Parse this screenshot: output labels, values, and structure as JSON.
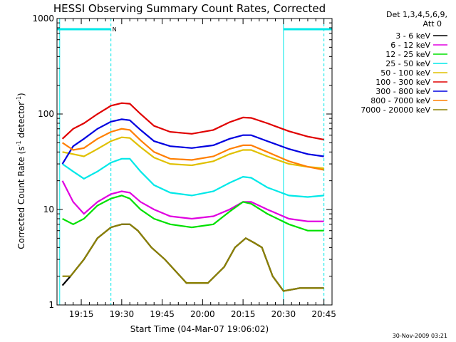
{
  "chart_data": {
    "type": "line",
    "title": "HESSI Observing Summary Count Rates, Corrected",
    "ylabel_main": "Corrected Count Rate (s",
    "ylabel_sup1": "-1",
    "ylabel_mid": " detector",
    "ylabel_sup2": "-1",
    "ylabel_end": ")",
    "xlabel": "Start Time (04-Mar-07 19:06:02)",
    "timestamp": "30-Nov-2009 03:21",
    "y_scale": "log",
    "ylim": [
      1,
      1000
    ],
    "xlim_minutes": [
      0,
      102
    ],
    "y_ticks": [
      {
        "value": 1,
        "label": "1"
      },
      {
        "value": 10,
        "label": "10"
      },
      {
        "value": 100,
        "label": "100"
      },
      {
        "value": 1000,
        "label": "1000"
      }
    ],
    "x_ticks": [
      {
        "minute": 9,
        "label": "19:15"
      },
      {
        "minute": 24,
        "label": "19:30"
      },
      {
        "minute": 39,
        "label": "19:45"
      },
      {
        "minute": 54,
        "label": "20:00"
      },
      {
        "minute": 69,
        "label": "20:15"
      },
      {
        "minute": 84,
        "label": "20:30"
      },
      {
        "minute": 99,
        "label": "20:45"
      }
    ],
    "legend_header": [
      "Det 1,3,4,5,6,9,",
      "Att 0"
    ],
    "legend_position": "right",
    "series": [
      {
        "name": "3 - 6 keV",
        "color": "#000000",
        "points": [
          [
            2,
            1.6
          ],
          [
            5,
            2
          ],
          [
            10,
            3
          ],
          [
            15,
            5
          ],
          [
            20,
            6.5
          ],
          [
            24,
            7
          ],
          [
            27,
            7
          ],
          [
            30,
            6
          ],
          [
            35,
            4
          ],
          [
            40,
            3
          ],
          [
            48,
            1.7
          ],
          [
            56,
            1.7
          ],
          [
            62,
            2.5
          ],
          [
            66,
            4
          ],
          [
            70,
            5
          ],
          [
            73,
            4.5
          ],
          [
            76,
            4
          ],
          [
            80,
            2
          ],
          [
            84,
            1.4
          ],
          [
            90,
            1.5
          ],
          [
            99,
            1.5
          ]
        ]
      },
      {
        "name": "6 - 12 keV",
        "color": "#e000e0",
        "points": [
          [
            2,
            20
          ],
          [
            6,
            12
          ],
          [
            10,
            9
          ],
          [
            15,
            12
          ],
          [
            20,
            14.5
          ],
          [
            24,
            15.5
          ],
          [
            27,
            15
          ],
          [
            31,
            12
          ],
          [
            36,
            10
          ],
          [
            42,
            8.5
          ],
          [
            50,
            8
          ],
          [
            58,
            8.5
          ],
          [
            64,
            10
          ],
          [
            69,
            12
          ],
          [
            72,
            12
          ],
          [
            78,
            10
          ],
          [
            86,
            8
          ],
          [
            93,
            7.5
          ],
          [
            99,
            7.5
          ]
        ]
      },
      {
        "name": "12 - 25 keV",
        "color": "#00e000",
        "points": [
          [
            2,
            8
          ],
          [
            6,
            7
          ],
          [
            10,
            8
          ],
          [
            15,
            11
          ],
          [
            20,
            13
          ],
          [
            24,
            14
          ],
          [
            27,
            13
          ],
          [
            31,
            10
          ],
          [
            36,
            8
          ],
          [
            42,
            7
          ],
          [
            50,
            6.5
          ],
          [
            58,
            7
          ],
          [
            64,
            9.5
          ],
          [
            69,
            12
          ],
          [
            72,
            11.5
          ],
          [
            78,
            9
          ],
          [
            86,
            7
          ],
          [
            93,
            6
          ],
          [
            99,
            6
          ]
        ]
      },
      {
        "name": "25 - 50 keV",
        "color": "#00e8e8",
        "points": [
          [
            2,
            30
          ],
          [
            6,
            25
          ],
          [
            10,
            21
          ],
          [
            15,
            25
          ],
          [
            20,
            31
          ],
          [
            24,
            34
          ],
          [
            27,
            34
          ],
          [
            31,
            25
          ],
          [
            36,
            18
          ],
          [
            42,
            15
          ],
          [
            50,
            14
          ],
          [
            58,
            15.5
          ],
          [
            64,
            19
          ],
          [
            69,
            22
          ],
          [
            72,
            21.5
          ],
          [
            78,
            17
          ],
          [
            86,
            14
          ],
          [
            93,
            13.5
          ],
          [
            99,
            14
          ]
        ]
      },
      {
        "name": "50 - 100 keV",
        "color": "#e0c000",
        "points": [
          [
            2,
            40
          ],
          [
            6,
            38
          ],
          [
            10,
            36
          ],
          [
            15,
            43
          ],
          [
            20,
            52
          ],
          [
            24,
            57
          ],
          [
            27,
            56
          ],
          [
            31,
            45
          ],
          [
            36,
            35
          ],
          [
            42,
            30
          ],
          [
            50,
            29
          ],
          [
            58,
            32
          ],
          [
            64,
            38
          ],
          [
            69,
            42
          ],
          [
            72,
            42
          ],
          [
            78,
            36
          ],
          [
            86,
            30
          ],
          [
            93,
            28
          ],
          [
            99,
            27
          ]
        ]
      },
      {
        "name": "100 - 300 keV",
        "color": "#e00000",
        "points": [
          [
            2,
            55
          ],
          [
            6,
            70
          ],
          [
            10,
            80
          ],
          [
            15,
            100
          ],
          [
            20,
            122
          ],
          [
            24,
            130
          ],
          [
            27,
            128
          ],
          [
            31,
            100
          ],
          [
            36,
            75
          ],
          [
            42,
            65
          ],
          [
            50,
            62
          ],
          [
            58,
            68
          ],
          [
            64,
            82
          ],
          [
            69,
            92
          ],
          [
            72,
            91
          ],
          [
            78,
            80
          ],
          [
            86,
            66
          ],
          [
            93,
            58
          ],
          [
            99,
            54
          ]
        ]
      },
      {
        "name": "300 - 800 keV",
        "color": "#0000e0",
        "points": [
          [
            2,
            30
          ],
          [
            6,
            46
          ],
          [
            10,
            55
          ],
          [
            15,
            70
          ],
          [
            20,
            83
          ],
          [
            24,
            88
          ],
          [
            27,
            86
          ],
          [
            31,
            68
          ],
          [
            36,
            52
          ],
          [
            42,
            46
          ],
          [
            50,
            44
          ],
          [
            58,
            47
          ],
          [
            64,
            55
          ],
          [
            69,
            60
          ],
          [
            72,
            60
          ],
          [
            78,
            52
          ],
          [
            86,
            43
          ],
          [
            93,
            38
          ],
          [
            99,
            36
          ]
        ]
      },
      {
        "name": "800 - 7000 keV",
        "color": "#ff7f00",
        "points": [
          [
            2,
            50
          ],
          [
            6,
            42
          ],
          [
            10,
            44
          ],
          [
            15,
            55
          ],
          [
            20,
            65
          ],
          [
            24,
            70
          ],
          [
            27,
            68
          ],
          [
            31,
            53
          ],
          [
            36,
            40
          ],
          [
            42,
            34
          ],
          [
            50,
            33
          ],
          [
            58,
            36
          ],
          [
            64,
            43
          ],
          [
            69,
            47
          ],
          [
            72,
            47
          ],
          [
            78,
            40
          ],
          [
            86,
            32
          ],
          [
            93,
            28
          ],
          [
            99,
            26
          ]
        ]
      },
      {
        "name": "7000 - 20000 keV",
        "color": "#8b8000",
        "points": [
          [
            2,
            2
          ],
          [
            5,
            2
          ],
          [
            10,
            3
          ],
          [
            15,
            5
          ],
          [
            20,
            6.5
          ],
          [
            24,
            7
          ],
          [
            27,
            7
          ],
          [
            30,
            6
          ],
          [
            35,
            4
          ],
          [
            40,
            3
          ],
          [
            48,
            1.7
          ],
          [
            56,
            1.7
          ],
          [
            62,
            2.5
          ],
          [
            66,
            4
          ],
          [
            70,
            5
          ],
          [
            73,
            4.5
          ],
          [
            76,
            4
          ],
          [
            80,
            2
          ],
          [
            84,
            1.4
          ],
          [
            90,
            1.5
          ],
          [
            99,
            1.5
          ]
        ]
      }
    ],
    "annotations": {
      "vertical_lines_minutes": [
        1,
        20,
        84,
        99
      ],
      "night_bars_minutes": [
        [
          0,
          20
        ],
        [
          84,
          102
        ]
      ],
      "night_bar_label": "N"
    }
  }
}
